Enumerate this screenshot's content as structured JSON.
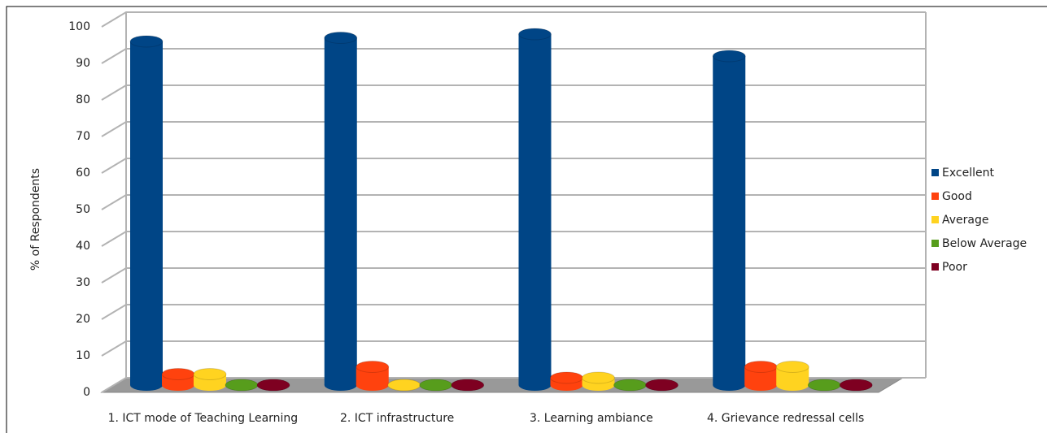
{
  "chart_data": {
    "type": "bar3d",
    "y_label": "% of Respondents",
    "categories": [
      "1. ICT mode of Teaching Learning",
      "2. ICT infrastructure",
      "3. Learning ambiance",
      "4. Grievance redressal cells"
    ],
    "series": [
      {
        "name": "Excellent",
        "color": "#004586",
        "values": [
          94,
          95,
          96,
          90
        ]
      },
      {
        "name": "Good",
        "color": "#ff420e",
        "values": [
          3,
          5,
          2,
          5
        ]
      },
      {
        "name": "Average",
        "color": "#ffd320",
        "values": [
          3,
          0,
          2,
          5
        ]
      },
      {
        "name": "Below Average",
        "color": "#579d1c",
        "values": [
          0,
          0,
          0,
          0
        ]
      },
      {
        "name": "Poor",
        "color": "#7e0021",
        "values": [
          0,
          0,
          0,
          0
        ]
      }
    ],
    "ylim": [
      0,
      100
    ],
    "yticks": [
      0,
      10,
      20,
      30,
      40,
      50,
      60,
      70,
      80,
      90,
      100
    ],
    "grid": true,
    "legend": "right"
  }
}
